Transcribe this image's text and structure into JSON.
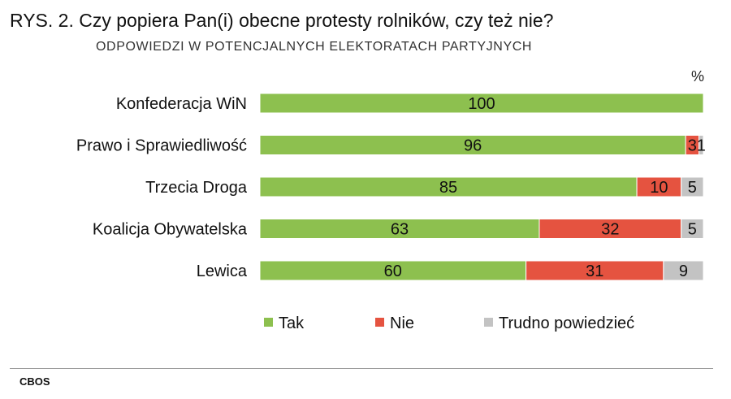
{
  "header": {
    "title": "RYS. 2. Czy popiera Pan(i) obecne protesty rolników, czy też nie?",
    "subtitle": "ODPOWIEDZI W POTENCJALNYCH ELEKTORATACH PARTYJNYCH",
    "unit": "%"
  },
  "chart_data": {
    "type": "bar",
    "orientation": "horizontal",
    "stacked": true,
    "title": "RYS. 2. Czy popiera Pan(i) obecne protesty rolników, czy też nie?",
    "subtitle": "ODPOWIEDZI W POTENCJALNYCH ELEKTORATACH PARTYJNYCH",
    "unit": "%",
    "xlim": [
      0,
      100
    ],
    "grid": false,
    "legend_position": "bottom",
    "categories": [
      "Konfederacja WiN",
      "Prawo i Sprawiedliwość",
      "Trzecia Droga",
      "Koalicja Obywatelska",
      "Lewica"
    ],
    "series": [
      {
        "name": "Tak",
        "color": "#8dc04f",
        "values": [
          100,
          96,
          85,
          63,
          60
        ]
      },
      {
        "name": "Nie",
        "color": "#e55340",
        "values": [
          0,
          3,
          10,
          32,
          31
        ]
      },
      {
        "name": "Trudno powiedzieć",
        "color": "#c3c3c3",
        "values": [
          0,
          1,
          5,
          5,
          9
        ]
      }
    ]
  },
  "footer": {
    "source": "CBOS"
  }
}
